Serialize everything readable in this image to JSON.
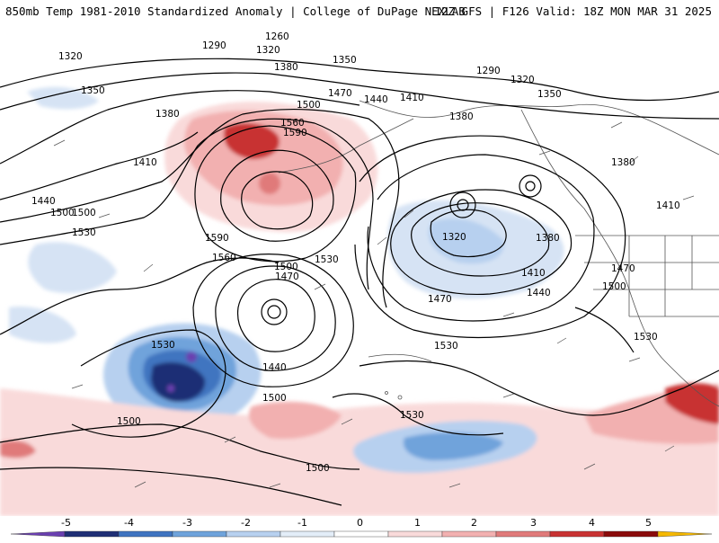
{
  "header": {
    "left_title": "850mb Temp 1981-2010 Standardized Anomaly | College of DuPage NEXLAB",
    "right_title": "12Z GFS | F126 Valid: 18Z MON MAR 31 2025"
  },
  "colorbar": {
    "labels": [
      "-5",
      "-4",
      "-3",
      "-2",
      "-1",
      "0",
      "1",
      "2",
      "3",
      "4",
      "5"
    ],
    "colors": [
      "#6a3fb0",
      "#1f2f75",
      "#3f74c0",
      "#6fa3db",
      "#b7d0ef",
      "#e3edf8",
      "#ffffff",
      "#f9dada",
      "#f2b0b0",
      "#e07a7a",
      "#c83232",
      "#8a0a0a",
      "#f5b800"
    ]
  },
  "contour_labels": [
    "1260",
    "1290",
    "1320",
    "1320",
    "1320",
    "1350",
    "1350",
    "1380",
    "1380",
    "1380",
    "1380",
    "1410",
    "1410",
    "1410",
    "1410",
    "1440",
    "1440",
    "1440",
    "1470",
    "1470",
    "1470",
    "1470",
    "1500",
    "1500",
    "1500",
    "1500",
    "1500",
    "1500",
    "1530",
    "1530",
    "1530",
    "1530",
    "1530",
    "1530",
    "1560",
    "1560",
    "1590",
    "1590",
    "1290",
    "1350",
    "1320",
    "1380",
    "1440",
    "1500",
    "1500"
  ]
}
